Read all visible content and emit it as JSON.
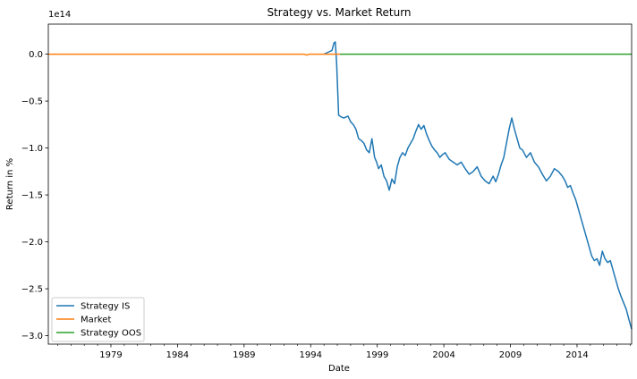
{
  "chart_data": {
    "type": "line",
    "title": "Strategy vs. Market Return",
    "xlabel": "Date",
    "ylabel": "Return in %",
    "y_offset_label": "1e14",
    "y_multiplier": 100000000000000.0,
    "xlim": [
      1974.3,
      2018.1
    ],
    "ylim": [
      -3.09,
      0.32
    ],
    "x_ticks": [
      1979,
      1984,
      1989,
      1994,
      1999,
      2004,
      2009,
      2014
    ],
    "x_tick_labels": [
      "1979",
      "1984",
      "1989",
      "1994",
      "1999",
      "2004",
      "2009",
      "2014"
    ],
    "y_ticks": [
      0.0,
      -0.5,
      -1.0,
      -1.5,
      -2.0,
      -2.5,
      -3.0
    ],
    "y_tick_labels": [
      "0.0",
      "−0.5",
      "−1.0",
      "−1.5",
      "−2.0",
      "−2.5",
      "−3.0"
    ],
    "grid": false,
    "legend_position": "lower-left",
    "series": [
      {
        "name": "Strategy IS",
        "color": "#1f77b4",
        "x": [
          1995.0,
          1995.3,
          1995.6,
          1995.75,
          1995.85,
          1995.95,
          1996.1,
          1996.3,
          1996.5,
          1996.8,
          1997.0,
          1997.2,
          1997.4,
          1997.6,
          1997.8,
          1998.0,
          1998.2,
          1998.4,
          1998.6,
          1998.8,
          1998.95,
          1999.1,
          1999.3,
          1999.5,
          1999.7,
          1999.9,
          2000.1,
          2000.3,
          2000.5,
          2000.7,
          2000.9,
          2001.1,
          2001.3,
          2001.5,
          2001.7,
          2001.9,
          2002.1,
          2002.3,
          2002.5,
          2002.7,
          2002.9,
          2003.1,
          2003.3,
          2003.5,
          2003.7,
          2003.9,
          2004.1,
          2004.4,
          2004.7,
          2005.0,
          2005.3,
          2005.6,
          2005.9,
          2006.2,
          2006.5,
          2006.8,
          2007.1,
          2007.4,
          2007.7,
          2007.9,
          2008.1,
          2008.3,
          2008.5,
          2008.7,
          2008.9,
          2009.1,
          2009.3,
          2009.5,
          2009.7,
          2009.9,
          2010.2,
          2010.5,
          2010.8,
          2011.1,
          2011.4,
          2011.7,
          2012.0,
          2012.3,
          2012.6,
          2012.9,
          2013.1,
          2013.3,
          2013.5,
          2013.7,
          2013.9,
          2014.1,
          2014.3,
          2014.5,
          2014.7,
          2014.9,
          2015.1,
          2015.3,
          2015.5,
          2015.7,
          2015.9,
          2016.1,
          2016.3,
          2016.5,
          2016.7,
          2016.9,
          2017.1,
          2017.3,
          2017.5,
          2017.7,
          2017.9,
          2018.1
        ],
        "values": [
          0.0,
          0.02,
          0.04,
          0.12,
          0.13,
          -0.1,
          -0.65,
          -0.67,
          -0.68,
          -0.66,
          -0.72,
          -0.75,
          -0.8,
          -0.9,
          -0.92,
          -0.95,
          -1.02,
          -1.05,
          -0.9,
          -1.1,
          -1.15,
          -1.22,
          -1.18,
          -1.3,
          -1.35,
          -1.45,
          -1.33,
          -1.38,
          -1.2,
          -1.1,
          -1.05,
          -1.08,
          -1.0,
          -0.95,
          -0.9,
          -0.82,
          -0.75,
          -0.8,
          -0.76,
          -0.85,
          -0.92,
          -0.98,
          -1.02,
          -1.05,
          -1.1,
          -1.07,
          -1.05,
          -1.12,
          -1.15,
          -1.18,
          -1.15,
          -1.22,
          -1.28,
          -1.25,
          -1.2,
          -1.3,
          -1.35,
          -1.38,
          -1.3,
          -1.36,
          -1.28,
          -1.18,
          -1.1,
          -0.95,
          -0.8,
          -0.68,
          -0.8,
          -0.9,
          -1.0,
          -1.02,
          -1.1,
          -1.05,
          -1.15,
          -1.2,
          -1.28,
          -1.35,
          -1.3,
          -1.22,
          -1.25,
          -1.3,
          -1.35,
          -1.42,
          -1.4,
          -1.48,
          -1.55,
          -1.65,
          -1.75,
          -1.85,
          -1.95,
          -2.05,
          -2.15,
          -2.2,
          -2.18,
          -2.25,
          -2.1,
          -2.18,
          -2.22,
          -2.2,
          -2.3,
          -2.4,
          -2.5,
          -2.58,
          -2.65,
          -2.72,
          -2.83,
          -2.93
        ]
      },
      {
        "name": "Market",
        "color": "#ff7f0e",
        "x": [
          1974.3,
          1980.0,
          1985.0,
          1990.0,
          1993.5,
          1993.7,
          1993.9,
          1994.5,
          1995.5,
          1996.2
        ],
        "values": [
          0.0,
          0.0,
          0.0,
          0.0,
          0.0,
          -0.01,
          0.0,
          0.0,
          0.0,
          0.0
        ]
      },
      {
        "name": "Strategy OOS",
        "color": "#2ca02c",
        "x": [
          1996.2,
          2000.0,
          2005.0,
          2010.0,
          2015.0,
          2018.1
        ],
        "values": [
          0.0,
          0.0,
          0.0,
          0.0,
          0.0,
          0.0
        ]
      }
    ]
  }
}
